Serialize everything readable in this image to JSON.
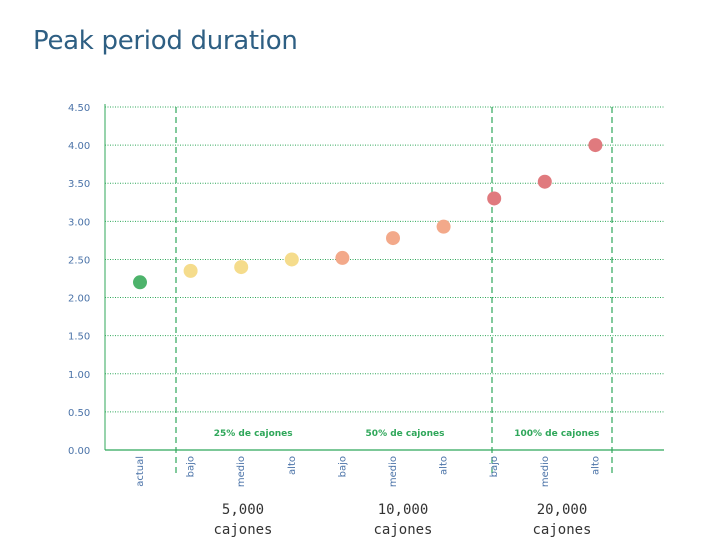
{
  "title": "Peak period duration",
  "colors": {
    "title": "#2e5f83",
    "grid": "#2fa75a",
    "axis_text": "#4b73a8",
    "group_text": "#2fa75a"
  },
  "chart_data": {
    "type": "scatter",
    "title": "Peak period duration",
    "xlabel": "",
    "ylabel": "",
    "ylim": [
      0,
      4.5
    ],
    "yticks": [
      "0.00",
      "0.50",
      "1.00",
      "1.50",
      "2.00",
      "2.50",
      "3.00",
      "3.50",
      "4.00",
      "4.50"
    ],
    "categories": [
      "actual",
      "bajo",
      "medio",
      "alto",
      "bajo",
      "medio",
      "alto",
      "bajo",
      "medio",
      "alto"
    ],
    "values": [
      2.2,
      2.35,
      2.4,
      2.5,
      2.52,
      2.78,
      2.93,
      3.3,
      3.52,
      4.0
    ],
    "point_colors": [
      "#4db36b",
      "#f5dc8c",
      "#f5dc8c",
      "#f5dc8c",
      "#f3a98a",
      "#f3a98a",
      "#f3a98a",
      "#e07a7e",
      "#e07a7e",
      "#e07a7e"
    ],
    "groups": [
      {
        "label": "25% de cajones",
        "start": 1,
        "end": 3
      },
      {
        "label": "50% de cajones",
        "start": 4,
        "end": 6
      },
      {
        "label": "100% de cajones",
        "start": 7,
        "end": 9
      }
    ],
    "bottom_labels": [
      {
        "value": "5,000",
        "unit": "cajones"
      },
      {
        "value": "10,000",
        "unit": "cajones"
      },
      {
        "value": "20,000",
        "unit": "cajones"
      }
    ],
    "grid": true
  }
}
